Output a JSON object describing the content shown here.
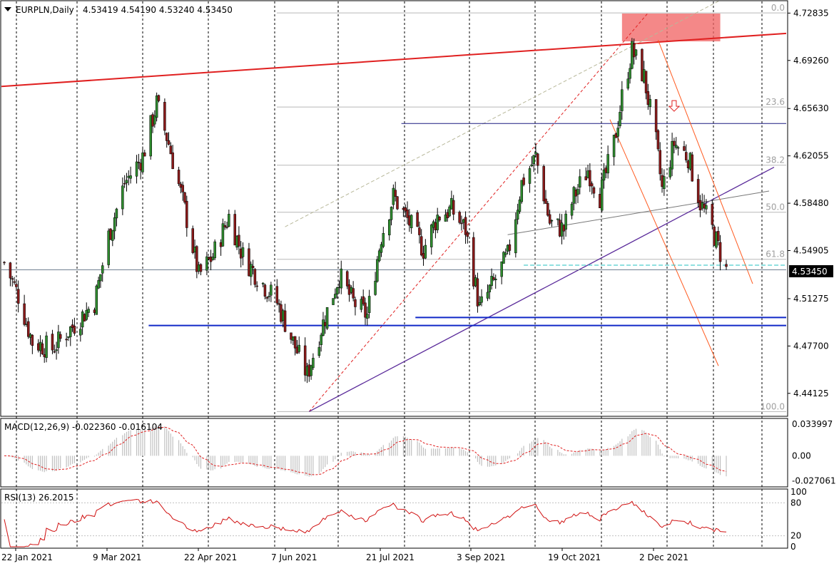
{
  "header": {
    "symbol": "EURPLN,Daily",
    "ohlc": "4.53419 4.54190 4.53240 4.53450"
  },
  "colors": {
    "bull": "#2e8b2e",
    "bear": "#8b1a1a",
    "macd_hist": "#c0c0c0",
    "signal": "#e02020",
    "rsi": "#d01010",
    "trend_red": "#e02020",
    "channel_orange": "#ff5a1f",
    "purple": "#5a2a9a",
    "blue_level": "#1028c8",
    "fib_grey": "#b8b8b8",
    "last_line": "#708090",
    "highlight_zone": "#f06060"
  },
  "chart_data": [
    {
      "type": "candlestick",
      "title": "EURPLN,Daily",
      "ylim": [
        4.425,
        4.735
      ],
      "y_ticks": [
        "4.72835",
        "4.69260",
        "4.65630",
        "4.62055",
        "4.58480",
        "4.54905",
        "4.51275",
        "4.47700",
        "4.44125"
      ],
      "last_price": "4.53450",
      "x_ticks": [
        "22 Jan 2021",
        "9 Mar 2021",
        "22 Apr 2021",
        "7 Jun 2021",
        "21 Jul 2021",
        "3 Sep 2021",
        "19 Oct 2021",
        "2 Dec 2021"
      ],
      "fib_levels": [
        "0.0",
        "23.6",
        "38.2",
        "50.0",
        "61.8",
        "100.0"
      ],
      "close_path": [
        [
          "2021-01-08",
          4.54
        ],
        [
          "2021-01-15",
          4.515
        ],
        [
          "2021-01-22",
          4.48
        ],
        [
          "2021-02-01",
          4.475
        ],
        [
          "2021-02-10",
          4.49
        ],
        [
          "2021-02-22",
          4.51
        ],
        [
          "2021-03-01",
          4.56
        ],
        [
          "2021-03-09",
          4.6
        ],
        [
          "2021-03-18",
          4.62
        ],
        [
          "2021-03-25",
          4.66
        ],
        [
          "2021-03-31",
          4.63
        ],
        [
          "2021-04-08",
          4.58
        ],
        [
          "2021-04-15",
          4.53
        ],
        [
          "2021-04-22",
          4.545
        ],
        [
          "2021-04-30",
          4.575
        ],
        [
          "2021-05-07",
          4.545
        ],
        [
          "2021-05-14",
          4.53
        ],
        [
          "2021-05-24",
          4.51
        ],
        [
          "2021-06-01",
          4.48
        ],
        [
          "2021-06-08",
          4.455
        ],
        [
          "2021-06-15",
          4.49
        ],
        [
          "2021-06-24",
          4.53
        ],
        [
          "2021-07-01",
          4.51
        ],
        [
          "2021-07-08",
          4.5
        ],
        [
          "2021-07-15",
          4.56
        ],
        [
          "2021-07-21",
          4.59
        ],
        [
          "2021-07-29",
          4.57
        ],
        [
          "2021-08-05",
          4.55
        ],
        [
          "2021-08-12",
          4.575
        ],
        [
          "2021-08-19",
          4.58
        ],
        [
          "2021-08-26",
          4.565
        ],
        [
          "2021-09-02",
          4.505
        ],
        [
          "2021-09-09",
          4.525
        ],
        [
          "2021-09-16",
          4.545
        ],
        [
          "2021-09-23",
          4.6
        ],
        [
          "2021-09-30",
          4.62
        ],
        [
          "2021-10-07",
          4.57
        ],
        [
          "2021-10-14",
          4.565
        ],
        [
          "2021-10-19",
          4.59
        ],
        [
          "2021-10-26",
          4.61
        ],
        [
          "2021-11-01",
          4.59
        ],
        [
          "2021-11-08",
          4.63
        ],
        [
          "2021-11-12",
          4.665
        ],
        [
          "2021-11-17",
          4.7
        ],
        [
          "2021-11-23",
          4.68
        ],
        [
          "2021-11-29",
          4.63
        ],
        [
          "2021-12-02",
          4.595
        ],
        [
          "2021-12-08",
          4.63
        ],
        [
          "2021-12-15",
          4.62
        ],
        [
          "2021-12-21",
          4.585
        ],
        [
          "2021-12-27",
          4.565
        ],
        [
          "2022-01-03",
          4.534
        ]
      ]
    },
    {
      "type": "line",
      "title": "MACD(12,26,9) -0.022360 -0.016104",
      "ylim": [
        -0.032,
        0.038
      ],
      "y_ticks": [
        "0.033997",
        "0.00",
        "-0.027061"
      ]
    },
    {
      "type": "line",
      "title": "RSI(13) 26.2015",
      "ylim": [
        0,
        100
      ],
      "y_ticks": [
        "100",
        "80",
        "20",
        "0"
      ]
    }
  ]
}
